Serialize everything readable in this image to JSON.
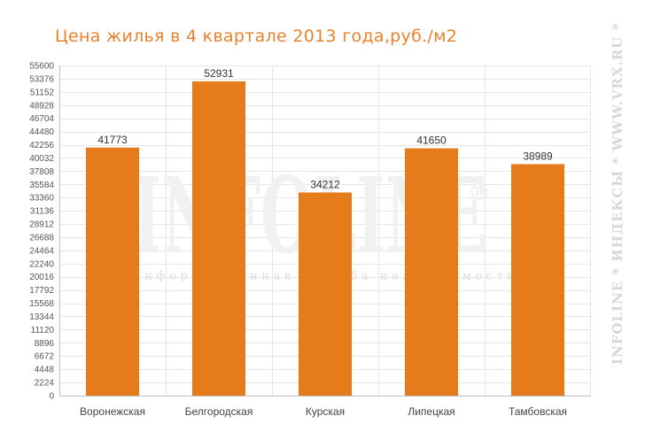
{
  "chart_data": {
    "type": "bar",
    "title": "Цена жилья в 4 квартале 2013 года,руб./м2",
    "categories": [
      "Воронежская",
      "Белгородская",
      "Курская",
      "Липецкая",
      "Тамбовская"
    ],
    "values": [
      41773,
      52931,
      34212,
      41650,
      38989
    ],
    "value_labels": [
      "41773",
      "52931",
      "34212",
      "41650",
      "38989"
    ],
    "ylim": [
      0,
      55600
    ],
    "y_ticks": [
      0,
      2224,
      4448,
      6672,
      8896,
      11120,
      13344,
      15568,
      17792,
      20016,
      22240,
      24464,
      26688,
      28912,
      31136,
      33360,
      35584,
      37808,
      40032,
      42256,
      44480,
      46704,
      48928,
      51152,
      53376,
      55600
    ],
    "grid": true,
    "bar_color": "#e57b1b",
    "watermark": {
      "logo": "INFOLINE",
      "logo_symbol": "®",
      "tagline": "информационная служба недвижимости",
      "side_text": "INFOLINE * ИНДЕКСЫ * WWW.VRX.RU *"
    }
  }
}
